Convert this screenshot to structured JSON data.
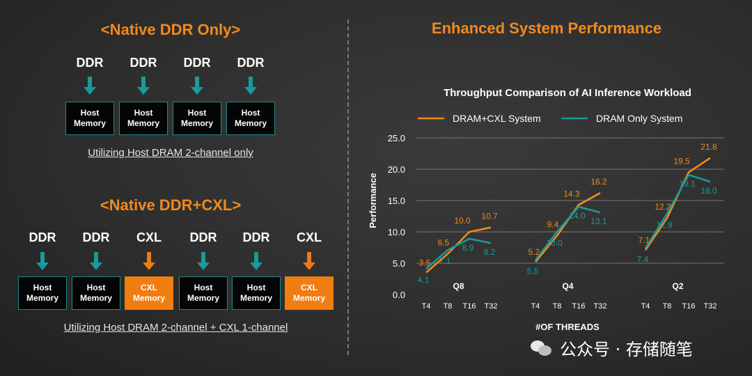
{
  "left": {
    "native": {
      "title": "<Native DDR Only>",
      "labels": [
        "DDR",
        "DDR",
        "DDR",
        "DDR"
      ],
      "boxes": [
        "Host\nMemory",
        "Host\nMemory",
        "Host\nMemory",
        "Host\nMemory"
      ],
      "caption": "Utilizing Host DRAM 2-channel only"
    },
    "cxl": {
      "title": "<Native DDR+CXL>",
      "labels": [
        "DDR",
        "DDR",
        "CXL",
        "DDR",
        "DDR",
        "CXL"
      ],
      "boxes": [
        "Host\nMemory",
        "Host\nMemory",
        "CXL\nMemory",
        "Host\nMemory",
        "Host\nMemory",
        "CXL\nMemory"
      ],
      "kinds": [
        "host",
        "host",
        "cxl",
        "host",
        "host",
        "cxl"
      ],
      "caption": "Utilizing Host DRAM 2-channel + CXL 1-channel"
    }
  },
  "right": {
    "title": "Enhanced System Performance"
  },
  "colors": {
    "orange": "#f08a1e",
    "teal": "#1a9a9a"
  },
  "chart_data": {
    "type": "line",
    "title": "Throughput Comparison of AI Inference Workload",
    "ylabel": "Performance",
    "xlabel": "#OF THREADS",
    "ylim": [
      0,
      25
    ],
    "yticks": [
      "0.0",
      "5.0",
      "10.0",
      "15.0",
      "20.0",
      "25.0"
    ],
    "yticks_values": [
      0,
      5,
      10,
      15,
      20,
      25
    ],
    "groups": [
      "Q8",
      "Q4",
      "Q2"
    ],
    "categories": [
      "T4",
      "T8",
      "T16",
      "T32"
    ],
    "series": [
      {
        "name": "DRAM+CXL System",
        "color": "#f08a1e",
        "values": [
          [
            3.5,
            6.5,
            10.0,
            10.7
          ],
          [
            5.2,
            9.4,
            14.3,
            16.2
          ],
          [
            7.1,
            12.2,
            19.5,
            21.8
          ]
        ]
      },
      {
        "name": "DRAM Only System",
        "color": "#1a9a9a",
        "values": [
          [
            4.1,
            7.1,
            8.9,
            8.2
          ],
          [
            5.5,
            10.0,
            14.0,
            13.1
          ],
          [
            7.4,
            12.9,
            19.1,
            18.0
          ]
        ]
      }
    ]
  },
  "watermark": "公众号 · 存储随笔"
}
